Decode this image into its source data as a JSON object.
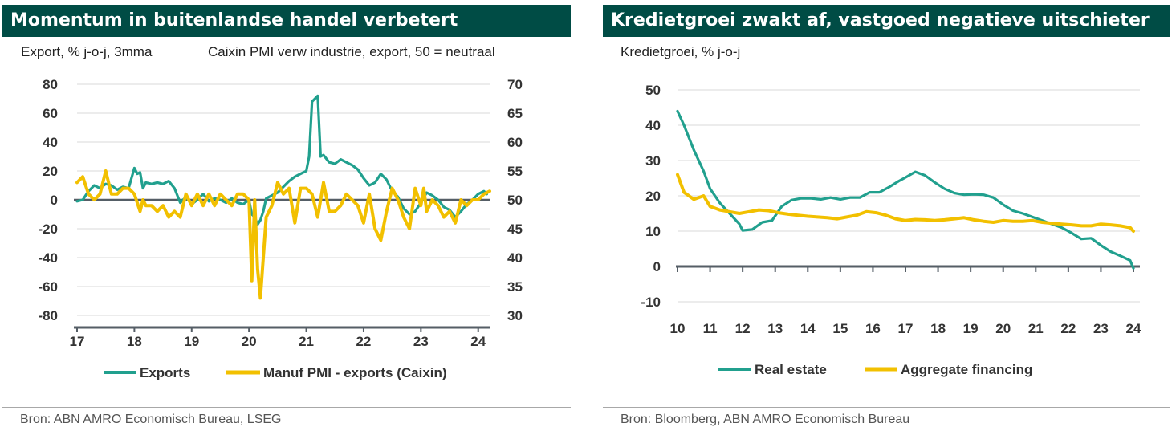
{
  "colors": {
    "header_bg": "#004c45",
    "teal": "#21a08e",
    "yellow": "#f2c000",
    "axis": "#555e66",
    "grid": "#d9d9d9"
  },
  "left": {
    "title": "Momentum in buitenlandse handel verbetert",
    "subtitle_left": "Export, % j-o-j, 3mma",
    "subtitle_right": "Caixin PMI verw industrie, export, 50 = neutraal",
    "source": "Bron: ABN AMRO Economisch Bureau, LSEG"
  },
  "right": {
    "title": "Kredietgroei zwakt af, vastgoed negatieve uitschieter",
    "subtitle": "Kredietgroei, % j-o-j",
    "source": "Bron: Bloomberg, ABN AMRO Economisch Bureau"
  },
  "chart_data": [
    {
      "type": "line",
      "title": "Momentum in buitenlandse handel verbetert",
      "ylabel": "Export, % j-o-j, 3mma",
      "y2label": "Caixin PMI verw industrie, export, 50 = neutraal",
      "ylim": [
        -80,
        80
      ],
      "y2lim": [
        30,
        70
      ],
      "xlim": [
        17,
        24.2
      ],
      "x_ticks": [
        "17",
        "18",
        "19",
        "20",
        "21",
        "22",
        "23",
        "24"
      ],
      "y_ticks": [
        "80",
        "60",
        "40",
        "20",
        "0",
        "-20",
        "-40",
        "-60",
        "-80"
      ],
      "y2_ticks": [
        "70",
        "65",
        "60",
        "55",
        "50",
        "45",
        "40",
        "35",
        "30"
      ],
      "grid": true,
      "series": [
        {
          "name": "Exports",
          "axis": "left",
          "color": "#21a08e",
          "x": [
            17.0,
            17.1,
            17.2,
            17.3,
            17.4,
            17.5,
            17.6,
            17.7,
            17.8,
            17.9,
            18.0,
            18.05,
            18.1,
            18.15,
            18.2,
            18.3,
            18.4,
            18.5,
            18.6,
            18.7,
            18.8,
            18.9,
            19.0,
            19.1,
            19.2,
            19.3,
            19.4,
            19.5,
            19.6,
            19.7,
            19.8,
            19.9,
            20.0,
            20.05,
            20.1,
            20.15,
            20.2,
            20.25,
            20.3,
            20.4,
            20.5,
            20.6,
            20.7,
            20.8,
            20.9,
            21.0,
            21.05,
            21.1,
            21.15,
            21.2,
            21.25,
            21.3,
            21.4,
            21.5,
            21.6,
            21.7,
            21.8,
            21.9,
            22.0,
            22.1,
            22.2,
            22.3,
            22.4,
            22.5,
            22.6,
            22.7,
            22.8,
            22.9,
            23.0,
            23.1,
            23.2,
            23.3,
            23.4,
            23.5,
            23.6,
            23.7,
            23.8,
            23.9,
            24.0,
            24.1,
            24.15
          ],
          "y": [
            -1,
            0,
            6,
            10,
            8,
            11,
            10,
            7,
            9,
            8,
            22,
            18,
            19,
            8,
            12,
            11,
            12,
            11,
            13,
            8,
            -2,
            2,
            -3,
            0,
            4,
            -1,
            1,
            0,
            -2,
            1,
            -2,
            -3,
            0,
            -10,
            -12,
            -17,
            -14,
            -8,
            1,
            3,
            5,
            9,
            13,
            16,
            18,
            20,
            30,
            68,
            70,
            72,
            30,
            31,
            26,
            25,
            28,
            26,
            24,
            21,
            15,
            10,
            12,
            18,
            14,
            6,
            2,
            -6,
            -10,
            -8,
            -2,
            5,
            3,
            0,
            -5,
            -7,
            -12,
            -8,
            -3,
            0,
            4,
            6,
            4
          ]
        },
        {
          "name": "Manuf PMI - exports (Caixin)",
          "axis": "right",
          "color": "#f2c000",
          "x": [
            17.0,
            17.1,
            17.2,
            17.3,
            17.4,
            17.5,
            17.6,
            17.7,
            17.8,
            17.9,
            18.0,
            18.1,
            18.15,
            18.2,
            18.3,
            18.4,
            18.5,
            18.6,
            18.7,
            18.8,
            18.9,
            19.0,
            19.1,
            19.2,
            19.3,
            19.4,
            19.5,
            19.6,
            19.7,
            19.8,
            19.9,
            20.0,
            20.05,
            20.1,
            20.15,
            20.2,
            20.25,
            20.3,
            20.4,
            20.5,
            20.6,
            20.7,
            20.8,
            20.9,
            21.0,
            21.1,
            21.2,
            21.3,
            21.4,
            21.5,
            21.6,
            21.7,
            21.8,
            21.9,
            22.0,
            22.1,
            22.2,
            22.3,
            22.4,
            22.5,
            22.6,
            22.7,
            22.8,
            22.9,
            23.0,
            23.05,
            23.1,
            23.2,
            23.3,
            23.4,
            23.5,
            23.6,
            23.7,
            23.8,
            23.9,
            24.0,
            24.1,
            24.2
          ],
          "y": [
            53,
            54,
            51,
            50,
            51,
            55,
            51,
            51,
            52,
            52,
            51,
            48,
            50,
            49,
            49,
            48,
            49,
            47,
            48,
            47,
            51,
            49,
            51,
            49,
            51,
            49,
            51,
            50,
            49,
            51,
            51,
            50,
            36,
            50,
            38,
            33,
            40,
            47,
            49,
            53,
            51,
            52,
            46,
            52,
            52,
            51,
            47,
            53,
            48,
            48,
            49,
            51,
            50,
            49,
            46,
            51,
            45,
            43,
            48,
            52,
            50,
            47,
            45,
            52,
            49,
            52,
            48,
            50,
            49,
            47,
            48,
            46,
            50,
            49,
            50,
            50,
            51,
            51.5
          ]
        }
      ]
    },
    {
      "type": "line",
      "title": "Kredietgroei zwakt af, vastgoed negatieve uitschieter",
      "ylabel": "Kredietgroei, % j-o-j",
      "ylim": [
        -10,
        50
      ],
      "xlim": [
        10,
        24
      ],
      "x_ticks": [
        "10",
        "11",
        "12",
        "13",
        "14",
        "15",
        "16",
        "17",
        "18",
        "19",
        "20",
        "21",
        "22",
        "23",
        "24"
      ],
      "y_ticks": [
        "50",
        "40",
        "30",
        "20",
        "10",
        "0",
        "-10"
      ],
      "grid": true,
      "series": [
        {
          "name": "Real estate",
          "color": "#21a08e",
          "x": [
            10.0,
            10.2,
            10.5,
            10.8,
            11.0,
            11.3,
            11.6,
            11.9,
            12.0,
            12.3,
            12.6,
            12.9,
            13.2,
            13.5,
            13.8,
            14.1,
            14.4,
            14.7,
            15.0,
            15.3,
            15.6,
            15.9,
            16.2,
            16.5,
            16.8,
            17.0,
            17.3,
            17.6,
            17.9,
            18.2,
            18.5,
            18.8,
            19.1,
            19.4,
            19.7,
            20.0,
            20.3,
            20.6,
            20.9,
            21.2,
            21.5,
            21.8,
            22.1,
            22.4,
            22.7,
            23.0,
            23.3,
            23.6,
            23.9,
            24.0
          ],
          "y": [
            44,
            40,
            33,
            27,
            22,
            18,
            15,
            12,
            10.2,
            10.5,
            12.5,
            13,
            17,
            18.8,
            19.3,
            19.3,
            19,
            19.5,
            19,
            19.5,
            19.5,
            21,
            21,
            22.5,
            24.2,
            25.2,
            26.8,
            25.8,
            23.8,
            22,
            20.8,
            20.3,
            20.4,
            20.3,
            19.5,
            17.5,
            15.8,
            15,
            14,
            13,
            12,
            11,
            9.5,
            7.8,
            8,
            6,
            4.2,
            3,
            1.7,
            -0.5
          ]
        },
        {
          "name": "Aggregate financing",
          "color": "#f2c000",
          "x": [
            10.0,
            10.2,
            10.5,
            10.8,
            11.0,
            11.3,
            11.6,
            11.9,
            12.2,
            12.5,
            12.8,
            13.1,
            13.4,
            13.7,
            14.0,
            14.3,
            14.6,
            14.9,
            15.2,
            15.5,
            15.8,
            16.1,
            16.4,
            16.7,
            17.0,
            17.3,
            17.6,
            17.9,
            18.2,
            18.5,
            18.8,
            19.1,
            19.4,
            19.7,
            20.0,
            20.3,
            20.6,
            20.9,
            21.2,
            21.5,
            21.8,
            22.1,
            22.4,
            22.7,
            23.0,
            23.3,
            23.6,
            23.9,
            24.0
          ],
          "y": [
            26,
            21,
            19,
            20,
            17,
            16,
            15.5,
            15,
            15.5,
            16,
            15.8,
            15.2,
            14.8,
            14.5,
            14.2,
            14,
            13.8,
            13.5,
            14,
            14.5,
            15.5,
            15.2,
            14.5,
            13.5,
            13,
            13.3,
            13.2,
            13,
            13.2,
            13.5,
            13.8,
            13.2,
            12.8,
            12.5,
            13,
            12.8,
            12.8,
            13,
            12.5,
            12.2,
            12,
            11.8,
            11.5,
            11.5,
            12,
            11.8,
            11.5,
            11,
            10
          ]
        }
      ]
    }
  ]
}
